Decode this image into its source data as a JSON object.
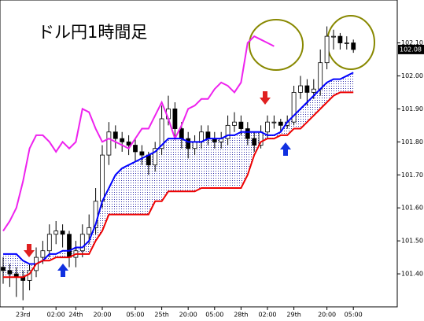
{
  "chart_data": {
    "type": "candlestick",
    "title": "ドル円1時間足",
    "categories": [
      null,
      null,
      null,
      "23rd",
      null,
      null,
      null,
      null,
      "02:00",
      null,
      null,
      "24th",
      null,
      null,
      null,
      "20:00",
      null,
      null,
      null,
      null,
      "05:00",
      null,
      null,
      null,
      "25th",
      null,
      null,
      null,
      "20:00",
      null,
      null,
      null,
      "05:00",
      null,
      null,
      null,
      "28th",
      null,
      null,
      null,
      "02:00",
      null,
      null,
      null,
      "29th",
      null,
      null,
      null,
      null,
      "20:00",
      null,
      null,
      null,
      "05:00"
    ],
    "open": [
      101.42,
      101.41,
      101.4,
      101.39,
      101.38,
      101.41,
      101.45,
      101.47,
      101.52,
      101.53,
      101.52,
      101.45,
      101.47,
      101.52,
      101.54,
      101.62,
      101.76,
      101.83,
      101.81,
      101.8,
      101.79,
      101.77,
      101.76,
      101.73,
      101.78,
      101.87,
      101.9,
      101.84,
      101.81,
      101.78,
      101.8,
      101.83,
      101.81,
      101.8,
      101.81,
      101.85,
      101.86,
      101.84,
      101.81,
      101.79,
      101.83,
      101.86,
      101.86,
      101.85,
      101.86,
      101.95,
      101.97,
      101.95,
      101.96,
      102.04,
      102.12,
      102.12,
      102.1,
      102.1
    ],
    "high": [
      101.45,
      101.43,
      101.42,
      101.41,
      101.43,
      101.48,
      101.5,
      101.55,
      101.56,
      101.55,
      101.53,
      101.5,
      101.55,
      101.58,
      101.66,
      101.79,
      101.86,
      101.85,
      101.83,
      101.82,
      101.81,
      101.79,
      101.77,
      101.8,
      101.91,
      101.94,
      101.92,
      101.86,
      101.83,
      101.82,
      101.85,
      101.85,
      101.83,
      101.83,
      101.88,
      101.89,
      101.88,
      101.86,
      101.83,
      101.85,
      101.88,
      101.88,
      101.87,
      101.88,
      101.97,
      102.0,
      101.99,
      101.99,
      102.08,
      102.15,
      102.14,
      102.13,
      102.12,
      102.11
    ],
    "low": [
      101.37,
      101.36,
      101.33,
      101.32,
      101.35,
      101.39,
      101.43,
      101.45,
      101.49,
      101.48,
      101.42,
      101.42,
      101.45,
      101.49,
      101.52,
      101.6,
      101.73,
      101.78,
      101.77,
      101.76,
      101.74,
      101.73,
      101.7,
      101.71,
      101.76,
      101.85,
      101.81,
      101.78,
      101.75,
      101.76,
      101.78,
      101.79,
      101.78,
      101.78,
      101.79,
      101.83,
      101.82,
      101.79,
      101.77,
      101.78,
      101.81,
      101.84,
      101.83,
      101.84,
      101.85,
      101.93,
      101.91,
      101.93,
      101.94,
      102.02,
      102.08,
      102.08,
      102.08,
      102.07
    ],
    "close": [
      101.41,
      101.4,
      101.39,
      101.38,
      101.41,
      101.45,
      101.47,
      101.52,
      101.53,
      101.52,
      101.45,
      101.47,
      101.52,
      101.54,
      101.62,
      101.76,
      101.83,
      101.81,
      101.8,
      101.79,
      101.77,
      101.76,
      101.73,
      101.78,
      101.87,
      101.9,
      101.84,
      101.81,
      101.78,
      101.8,
      101.83,
      101.81,
      101.8,
      101.81,
      101.85,
      101.86,
      101.84,
      101.81,
      101.79,
      101.83,
      101.86,
      101.86,
      101.85,
      101.86,
      101.95,
      101.97,
      101.95,
      101.96,
      102.04,
      102.12,
      102.12,
      102.1,
      102.1,
      102.08
    ],
    "series": [
      {
        "color": "#ee22ee",
        "values": [
          101.53,
          101.56,
          101.6,
          101.68,
          101.78,
          101.82,
          101.82,
          101.8,
          101.77,
          101.8,
          101.78,
          101.8,
          101.9,
          101.89,
          101.84,
          101.8,
          101.81,
          101.8,
          101.79,
          101.78,
          101.81,
          101.84,
          101.84,
          101.88,
          101.92,
          101.87,
          101.81,
          101.85,
          101.9,
          101.91,
          101.93,
          101.93,
          101.96,
          101.98,
          101.97,
          101.95,
          101.98,
          102.1,
          102.12,
          102.11,
          102.1,
          102.09,
          null,
          null,
          null,
          null,
          null,
          null,
          null,
          null,
          null,
          null,
          null,
          null
        ]
      },
      {
        "color": "#0000ff",
        "values": [
          101.46,
          101.46,
          101.46,
          101.44,
          101.43,
          101.43,
          101.44,
          101.46,
          101.46,
          101.47,
          101.47,
          101.48,
          101.48,
          101.5,
          101.55,
          101.62,
          101.66,
          101.7,
          101.72,
          101.73,
          101.74,
          101.75,
          101.76,
          101.77,
          101.79,
          101.81,
          101.81,
          101.81,
          101.8,
          101.8,
          101.8,
          101.81,
          101.81,
          101.81,
          101.82,
          101.82,
          101.83,
          101.83,
          101.83,
          101.83,
          101.82,
          101.82,
          101.83,
          101.86,
          101.88,
          101.9,
          101.92,
          101.94,
          101.96,
          101.98,
          101.99,
          101.99,
          102.0,
          102.01
        ]
      },
      {
        "color": "#ee0000",
        "values": [
          101.39,
          101.39,
          101.39,
          101.39,
          101.4,
          101.43,
          101.44,
          101.44,
          101.45,
          101.45,
          101.45,
          101.46,
          101.46,
          101.46,
          101.5,
          101.53,
          101.58,
          101.58,
          101.58,
          101.58,
          101.58,
          101.58,
          101.58,
          101.62,
          101.62,
          101.65,
          101.65,
          101.65,
          101.65,
          101.65,
          101.66,
          101.66,
          101.66,
          101.66,
          101.66,
          101.66,
          101.66,
          101.7,
          101.76,
          101.8,
          101.81,
          101.81,
          101.82,
          101.82,
          101.84,
          101.84,
          101.86,
          101.88,
          101.9,
          101.92,
          101.94,
          101.95,
          101.95,
          101.95
        ]
      }
    ],
    "ylim": [
      101.3,
      102.23
    ],
    "yticks": [
      {
        "value": 101.4,
        "label": "101.40"
      },
      {
        "value": 101.5,
        "label": "101.50"
      },
      {
        "value": 101.6,
        "label": "101.60"
      },
      {
        "value": 101.7,
        "label": "101.70"
      },
      {
        "value": 101.8,
        "label": "101.80"
      },
      {
        "value": 101.9,
        "label": "101.90"
      },
      {
        "value": 102.0,
        "label": "102.00"
      },
      {
        "value": 102.1,
        "label": "102.10"
      }
    ],
    "last_price": 102.08,
    "grid": false
  }
}
